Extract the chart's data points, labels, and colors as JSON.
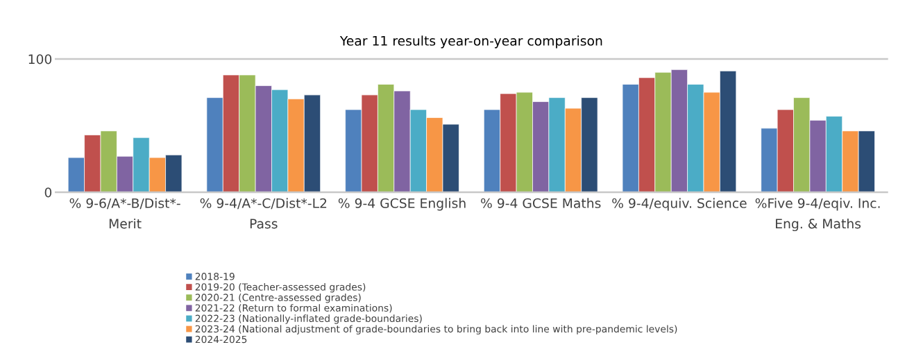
{
  "chart_data": {
    "type": "bar",
    "title": "Year 11 results year-on-year comparison",
    "categories": [
      "% 9-6/A*-B/Dist*-\nMerit",
      "% 9-4/A*-C/Dist*-L2\nPass",
      "% 9-4 GCSE English",
      "% 9-4 GCSE Maths",
      "% 9-4/equiv. Science",
      "%Five 9-4/eqiv. Inc.\nEng. & Maths"
    ],
    "series": [
      {
        "name": "2018-19",
        "color": "#4f81bd",
        "values": [
          26,
          71,
          62,
          62,
          81,
          48
        ]
      },
      {
        "name": "2019-20 (Teacher-assessed grades)",
        "color": "#c0504d",
        "values": [
          43,
          88,
          73,
          74,
          86,
          62
        ]
      },
      {
        "name": "2020-21 (Centre-assessed grades)",
        "color": "#9bbb59",
        "values": [
          46,
          88,
          81,
          75,
          90,
          71
        ]
      },
      {
        "name": "2021-22 (Return to formal examinations)",
        "color": "#8064a2",
        "values": [
          27,
          80,
          76,
          68,
          92,
          54
        ]
      },
      {
        "name": "2022-23 (Nationally-inflated grade-boundaries)",
        "color": "#4bacc6",
        "values": [
          41,
          77,
          62,
          71,
          81,
          57
        ]
      },
      {
        "name": "2023-24 (National adjustment of grade-boundaries to bring back into line with pre-pandemic levels)",
        "color": "#f79646",
        "values": [
          26,
          70,
          56,
          63,
          75,
          46
        ]
      },
      {
        "name": "2024-2025",
        "color": "#2c4d75",
        "values": [
          28,
          73,
          51,
          71,
          91,
          46
        ]
      }
    ],
    "ylim": [
      0,
      100
    ],
    "yticks": [
      0,
      100
    ],
    "legend": "bottom"
  }
}
